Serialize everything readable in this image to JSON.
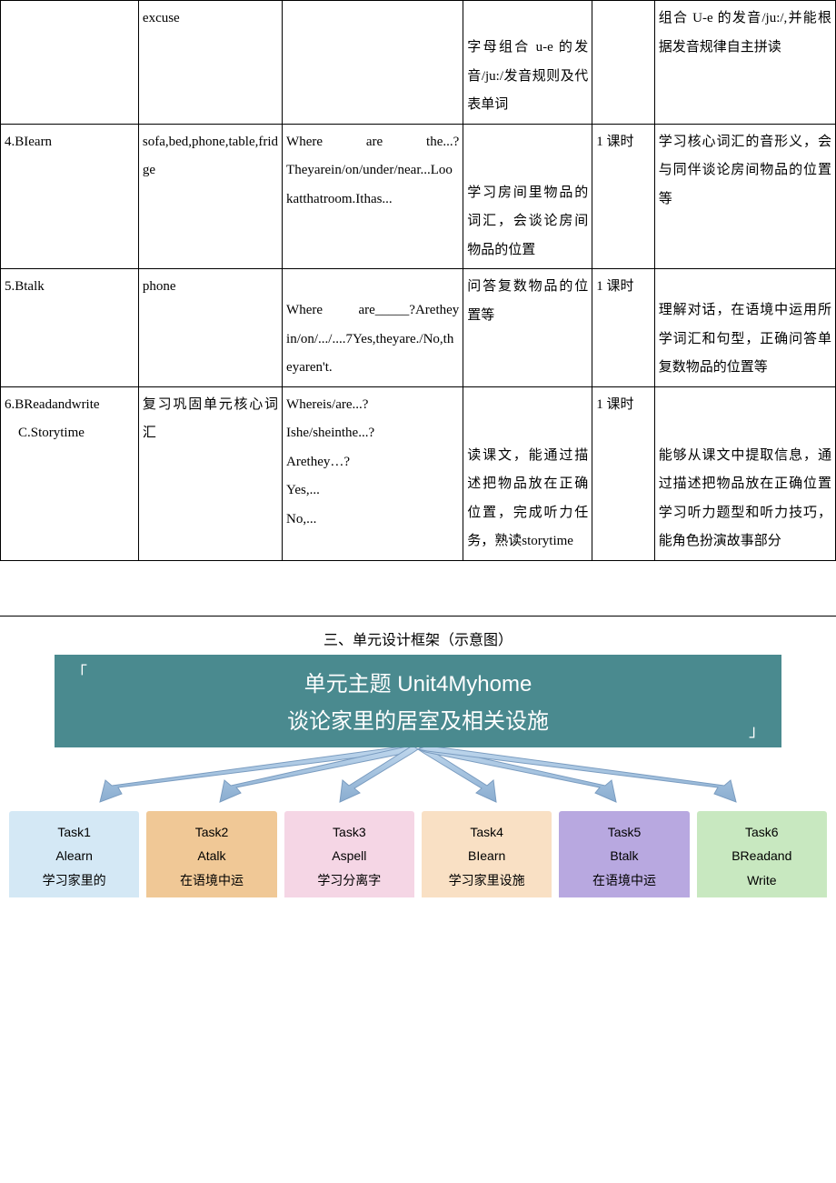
{
  "table": {
    "rows": [
      {
        "col1": "",
        "col2": "excuse",
        "col3": "",
        "col4": "字母组合 u-e 的发音/ju:/发音规则及代表单词",
        "col5": "",
        "col6": "组合 U-e 的发音/ju:/,并能根据发音规律自主拼读"
      },
      {
        "col1": "4.BIearn",
        "col2": "sofa,bed,phone,table,fridge",
        "col3": "Where are the...?Theyarein/on/under/near...Lookatthatroom.Ithas...",
        "col4": "学习房间里物品的词汇，会谈论房间物品的位置",
        "col5": "1 课时",
        "col6": "学习核心词汇的音形义，会与同伴谈论房间物品的位置等"
      },
      {
        "col1": "5.Btalk",
        "col2": "phone",
        "col3": "Where are_____?Arethey in/on/.../....7Yes,theyare./No,theyaren't.",
        "col4": "问答复数物品的位置等",
        "col5": "1 课时",
        "col6": "理解对话，在语境中运用所学词汇和句型，正确问答单复数物品的位置等"
      },
      {
        "col1": "6.BReadandwrite\n    C.Storytime",
        "col2": "复习巩固单元核心词汇",
        "col3": "Whereis/are...?\nIshe/sheinthe...?\nArethey…?\nYes,...\nNo,...",
        "col4": "读课文，能通过描述把物品放在正确位置，完成听力任务，熟读storytime",
        "col5": "1 课时",
        "col6": "能够从课文中提取信息，通过描述把物品放在正确位置学习听力题型和听力技巧，能角色扮演故事部分"
      }
    ]
  },
  "section_title": "三、单元设计框架（示意图）",
  "theme": {
    "line1": "单元主题 Unit4Myhome",
    "line2": "谈论家里的居室及相关设施",
    "bg_color": "#4a8a8f"
  },
  "arrow_color": "#9fbfe0",
  "tasks": [
    {
      "title": "Task1",
      "sub": "Alearn",
      "desc": "学习家里的",
      "bg": "#d4e8f5"
    },
    {
      "title": "Task2",
      "sub": "Atalk",
      "desc": "在语境中运",
      "bg": "#f0c896"
    },
    {
      "title": "Task3",
      "sub": "Aspell",
      "desc": "学习分离字",
      "bg": "#f5d6e5"
    },
    {
      "title": "Task4",
      "sub": "BIearn",
      "desc": "学习家里设施",
      "bg": "#f9e0c4"
    },
    {
      "title": "Task5",
      "sub": "Btalk",
      "desc": "在语境中运",
      "bg": "#b8a8e0"
    },
    {
      "title": "Task6",
      "sub": "BReadand\nWrite",
      "desc": "",
      "bg": "#c8e8c0"
    }
  ]
}
